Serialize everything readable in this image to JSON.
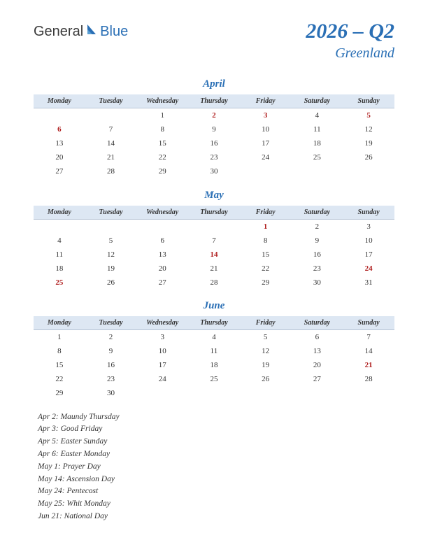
{
  "logo": {
    "part1": "General",
    "part2": "Blue"
  },
  "title": {
    "quarter": "2026 – Q2",
    "region": "Greenland"
  },
  "colors": {
    "accent": "#2a6fb5",
    "header_bg": "#dde7f3",
    "header_border": "#b8c4d6",
    "holiday": "#b02020",
    "text": "#333333"
  },
  "weekdays": [
    "Monday",
    "Tuesday",
    "Wednesday",
    "Thursday",
    "Friday",
    "Saturday",
    "Sunday"
  ],
  "months": [
    {
      "name": "April",
      "rows": [
        [
          null,
          null,
          {
            "d": 1
          },
          {
            "d": 2,
            "h": true
          },
          {
            "d": 3,
            "h": true
          },
          {
            "d": 4
          },
          {
            "d": 5,
            "h": true
          }
        ],
        [
          {
            "d": 6,
            "h": true
          },
          {
            "d": 7
          },
          {
            "d": 8
          },
          {
            "d": 9
          },
          {
            "d": 10
          },
          {
            "d": 11
          },
          {
            "d": 12
          }
        ],
        [
          {
            "d": 13
          },
          {
            "d": 14
          },
          {
            "d": 15
          },
          {
            "d": 16
          },
          {
            "d": 17
          },
          {
            "d": 18
          },
          {
            "d": 19
          }
        ],
        [
          {
            "d": 20
          },
          {
            "d": 21
          },
          {
            "d": 22
          },
          {
            "d": 23
          },
          {
            "d": 24
          },
          {
            "d": 25
          },
          {
            "d": 26
          }
        ],
        [
          {
            "d": 27
          },
          {
            "d": 28
          },
          {
            "d": 29
          },
          {
            "d": 30
          },
          null,
          null,
          null
        ]
      ]
    },
    {
      "name": "May",
      "rows": [
        [
          null,
          null,
          null,
          null,
          {
            "d": 1,
            "h": true
          },
          {
            "d": 2
          },
          {
            "d": 3
          }
        ],
        [
          {
            "d": 4
          },
          {
            "d": 5
          },
          {
            "d": 6
          },
          {
            "d": 7
          },
          {
            "d": 8
          },
          {
            "d": 9
          },
          {
            "d": 10
          }
        ],
        [
          {
            "d": 11
          },
          {
            "d": 12
          },
          {
            "d": 13
          },
          {
            "d": 14,
            "h": true
          },
          {
            "d": 15
          },
          {
            "d": 16
          },
          {
            "d": 17
          }
        ],
        [
          {
            "d": 18
          },
          {
            "d": 19
          },
          {
            "d": 20
          },
          {
            "d": 21
          },
          {
            "d": 22
          },
          {
            "d": 23
          },
          {
            "d": 24,
            "h": true
          }
        ],
        [
          {
            "d": 25,
            "h": true
          },
          {
            "d": 26
          },
          {
            "d": 27
          },
          {
            "d": 28
          },
          {
            "d": 29
          },
          {
            "d": 30
          },
          {
            "d": 31
          }
        ]
      ]
    },
    {
      "name": "June",
      "rows": [
        [
          {
            "d": 1
          },
          {
            "d": 2
          },
          {
            "d": 3
          },
          {
            "d": 4
          },
          {
            "d": 5
          },
          {
            "d": 6
          },
          {
            "d": 7
          }
        ],
        [
          {
            "d": 8
          },
          {
            "d": 9
          },
          {
            "d": 10
          },
          {
            "d": 11
          },
          {
            "d": 12
          },
          {
            "d": 13
          },
          {
            "d": 14
          }
        ],
        [
          {
            "d": 15
          },
          {
            "d": 16
          },
          {
            "d": 17
          },
          {
            "d": 18
          },
          {
            "d": 19
          },
          {
            "d": 20
          },
          {
            "d": 21,
            "h": true
          }
        ],
        [
          {
            "d": 22
          },
          {
            "d": 23
          },
          {
            "d": 24
          },
          {
            "d": 25
          },
          {
            "d": 26
          },
          {
            "d": 27
          },
          {
            "d": 28
          }
        ],
        [
          {
            "d": 29
          },
          {
            "d": 30
          },
          null,
          null,
          null,
          null,
          null
        ]
      ]
    }
  ],
  "holidays": [
    "Apr 2: Maundy Thursday",
    "Apr 3: Good Friday",
    "Apr 5: Easter Sunday",
    "Apr 6: Easter Monday",
    "May 1: Prayer Day",
    "May 14: Ascension Day",
    "May 24: Pentecost",
    "May 25: Whit Monday",
    "Jun 21: National Day"
  ]
}
